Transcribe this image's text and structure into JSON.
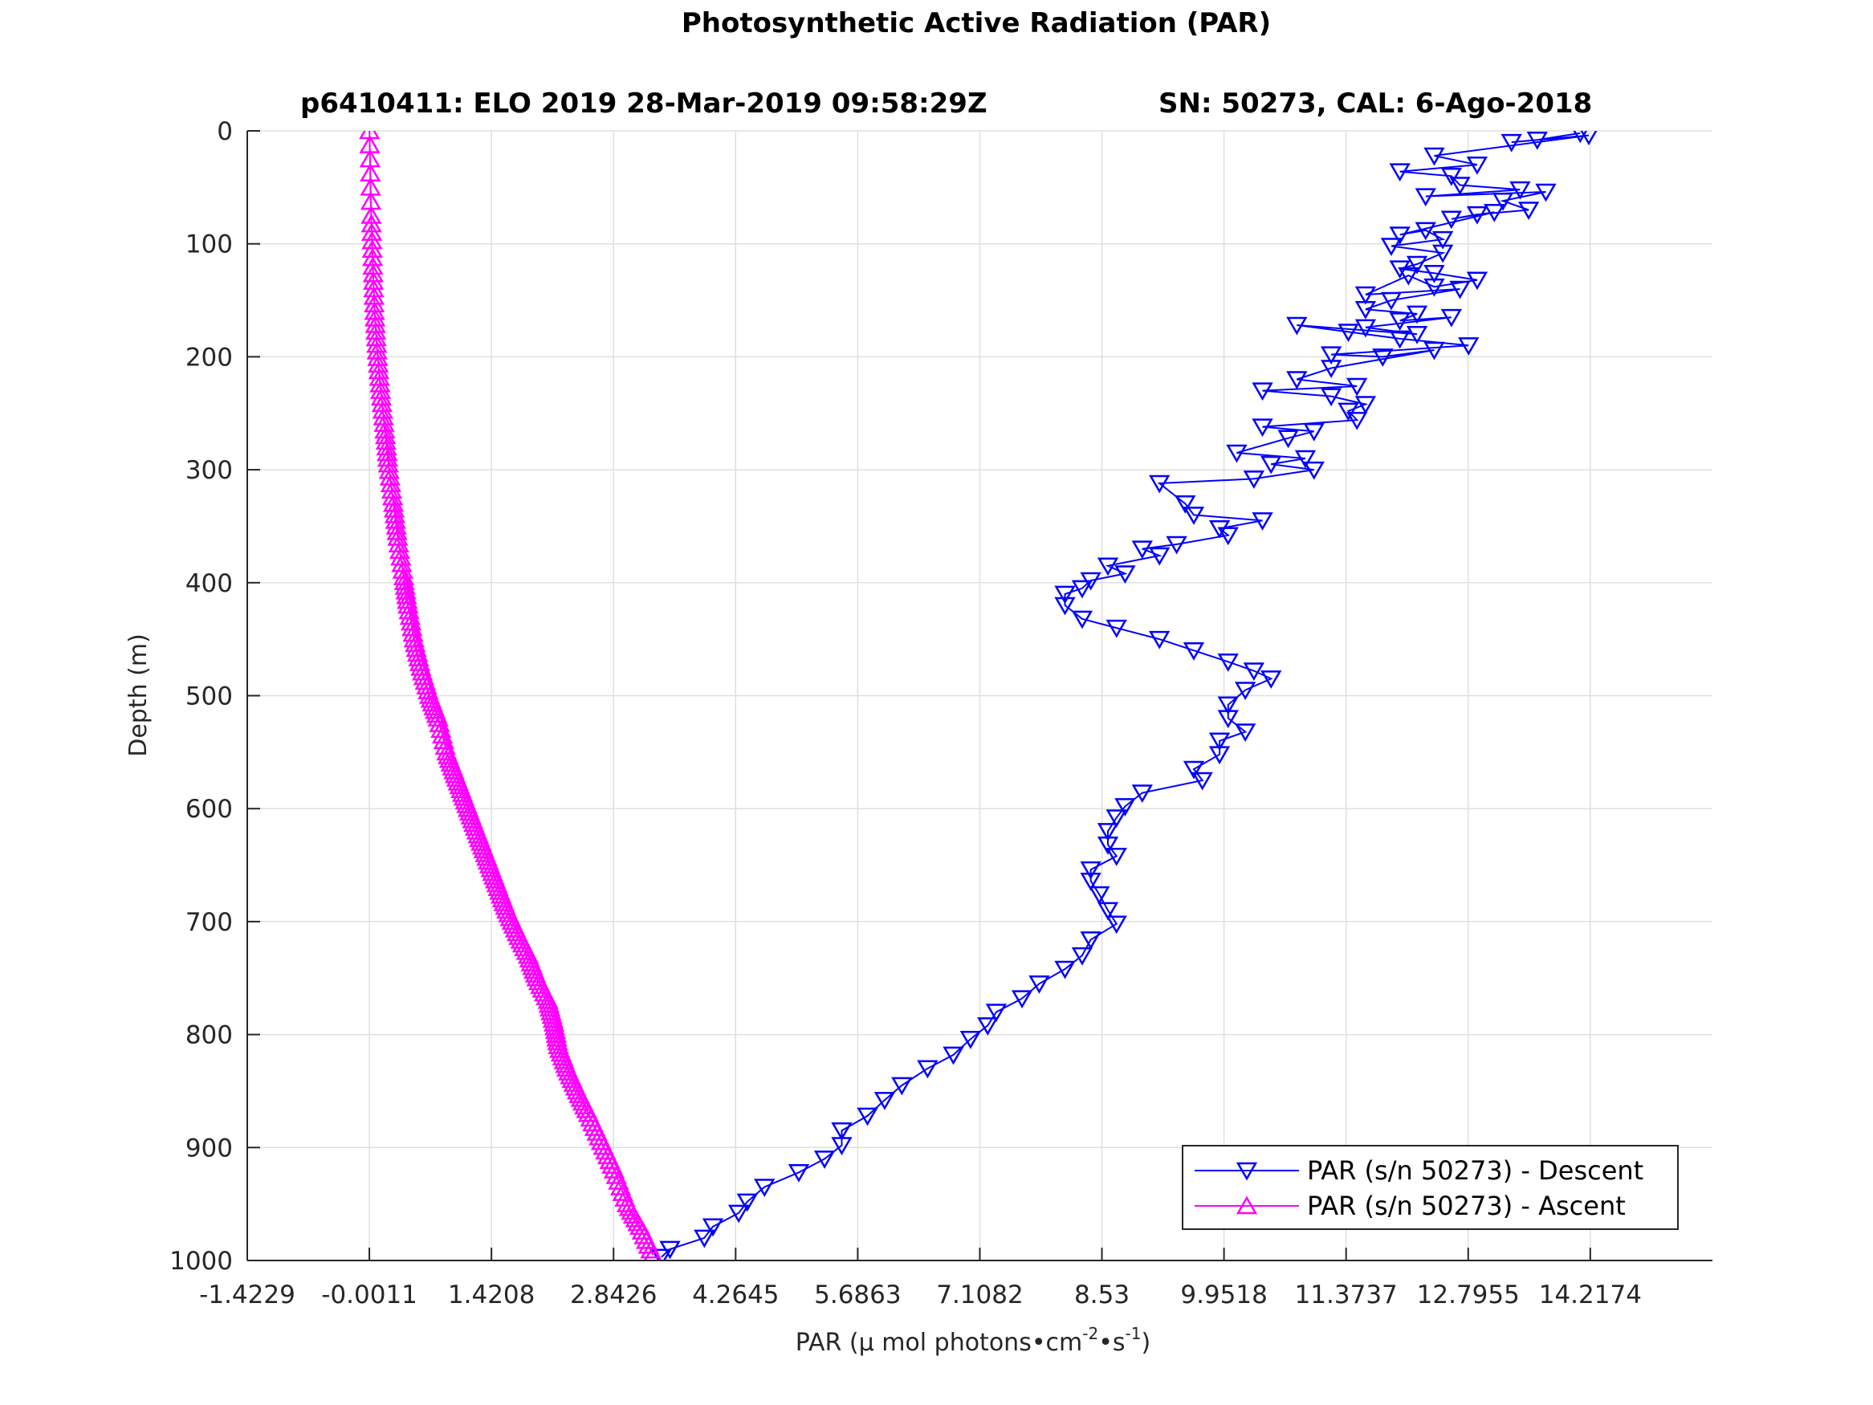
{
  "chart_data": {
    "type": "scatter",
    "title": "Photosynthetic Active Radiation (PAR)",
    "subtitle_left": "p6410411: ELO 2019 28-Mar-2019 09:58:29Z",
    "subtitle_right": "SN: 50273, CAL: 6-Ago-2018",
    "xlabel": "PAR (μ mol photons•cm",
    "xlabel_sup1": "-2",
    "xlabel_mid": "•s",
    "xlabel_sup2": "-1",
    "xlabel_end": ")",
    "ylabel": "Depth (m)",
    "xlim": [
      -1.4229,
      15.64
    ],
    "ylim": [
      0,
      1000
    ],
    "y_reversed": true,
    "grid": true,
    "legend_position": "bottom-right",
    "x_ticks": [
      -1.4229,
      -0.0011,
      1.4208,
      2.8426,
      4.2645,
      5.6863,
      7.1082,
      8.53,
      9.9518,
      11.3737,
      12.7955,
      14.2174
    ],
    "x_tick_labels": [
      "-1.4229",
      "-0.0011",
      "1.4208",
      "2.8426",
      "4.2645",
      "5.6863",
      "7.1082",
      "8.53",
      "9.9518",
      "11.3737",
      "12.7955",
      "14.2174"
    ],
    "y_ticks": [
      0,
      100,
      200,
      300,
      400,
      500,
      600,
      700,
      800,
      900,
      1000
    ],
    "y_tick_labels": [
      "0",
      "100",
      "200",
      "300",
      "400",
      "500",
      "600",
      "700",
      "800",
      "900",
      "1000"
    ],
    "series": [
      {
        "name": "PAR (s/n 50273) - Descent",
        "color": "#0000ff",
        "marker": "triangle-down",
        "x": [
          14.1,
          13.6,
          13.3,
          14.2,
          12.4,
          12.9,
          12.0,
          12.6,
          12.7,
          13.4,
          12.3,
          13.7,
          13.2,
          13.5,
          12.9,
          12.6,
          13.1,
          12.0,
          12.3,
          12.5,
          11.9,
          12.5,
          12.2,
          12.0,
          12.4,
          12.9,
          12.4,
          12.1,
          11.6,
          12.7,
          11.9,
          11.6,
          12.2,
          12.0,
          12.6,
          11.6,
          12.2,
          10.8,
          11.4,
          12.0,
          12.8,
          11.2,
          11.8,
          12.4,
          11.2,
          10.8,
          11.5,
          10.4,
          11.2,
          11.6,
          11.4,
          11.5,
          10.4,
          11.0,
          10.7,
          10.1,
          10.9,
          10.5,
          11.0,
          10.3,
          9.2,
          9.5,
          9.6,
          10.4,
          9.9,
          10.0,
          9.4,
          9.0,
          9.2,
          8.6,
          8.8,
          8.4,
          8.3,
          8.1,
          8.1,
          8.3,
          8.7,
          9.2,
          9.6,
          10.0,
          10.3,
          10.5,
          10.2,
          10.0,
          10.0,
          10.2,
          9.9,
          9.9,
          9.6,
          9.7,
          9.0,
          8.8,
          8.7,
          8.6,
          8.6,
          8.7,
          8.4,
          8.4,
          8.5,
          8.6,
          8.7,
          8.4,
          8.3,
          8.1,
          7.8,
          7.6,
          7.3,
          7.2,
          7.0,
          6.8,
          6.5,
          6.2,
          6.0,
          5.8,
          5.5,
          5.5,
          5.3,
          5.0,
          4.6,
          4.4,
          4.3,
          4.0,
          3.9,
          3.5,
          3.4
        ],
        "y": [
          2,
          8,
          10,
          4,
          22,
          30,
          36,
          40,
          48,
          52,
          58,
          54,
          62,
          70,
          74,
          78,
          72,
          92,
          88,
          96,
          102,
          108,
          118,
          122,
          126,
          132,
          138,
          128,
          145,
          140,
          150,
          158,
          162,
          168,
          165,
          174,
          180,
          172,
          178,
          184,
          190,
          198,
          200,
          194,
          210,
          220,
          226,
          230,
          235,
          242,
          248,
          256,
          262,
          266,
          272,
          285,
          290,
          295,
          300,
          308,
          312,
          330,
          340,
          345,
          352,
          358,
          366,
          370,
          376,
          385,
          392,
          398,
          405,
          410,
          420,
          432,
          440,
          450,
          460,
          470,
          478,
          485,
          495,
          508,
          520,
          532,
          540,
          552,
          565,
          575,
          586,
          598,
          608,
          620,
          632,
          642,
          654,
          664,
          676,
          690,
          702,
          716,
          730,
          742,
          755,
          768,
          780,
          792,
          804,
          818,
          830,
          845,
          858,
          872,
          885,
          898,
          910,
          922,
          935,
          948,
          958,
          970,
          980,
          990,
          997
        ]
      },
      {
        "name": "PAR (s/n 50273) - Ascent",
        "color": "#ff00ff",
        "marker": "triangle-up",
        "x": [
          3.3,
          3.15,
          3.0,
          2.85,
          2.7,
          2.55,
          2.42,
          2.3,
          2.2,
          2.15,
          2.08,
          1.95,
          1.85,
          1.72,
          1.6,
          1.5,
          1.4,
          1.3,
          1.2,
          1.1,
          1.0,
          0.9,
          0.8,
          0.7,
          0.6,
          0.52,
          0.45,
          0.4,
          0.33,
          0.28,
          0.22,
          0.18,
          0.13,
          0.09,
          0.06,
          0.04,
          0.02,
          0.0
        ],
        "y": [
          995,
          970,
          950,
          920,
          895,
          870,
          850,
          830,
          810,
          790,
          770,
          750,
          730,
          710,
          690,
          670,
          650,
          630,
          610,
          590,
          570,
          550,
          520,
          500,
          475,
          450,
          420,
          395,
          360,
          330,
          295,
          265,
          230,
          195,
          160,
          120,
          75,
          0
        ]
      }
    ]
  }
}
